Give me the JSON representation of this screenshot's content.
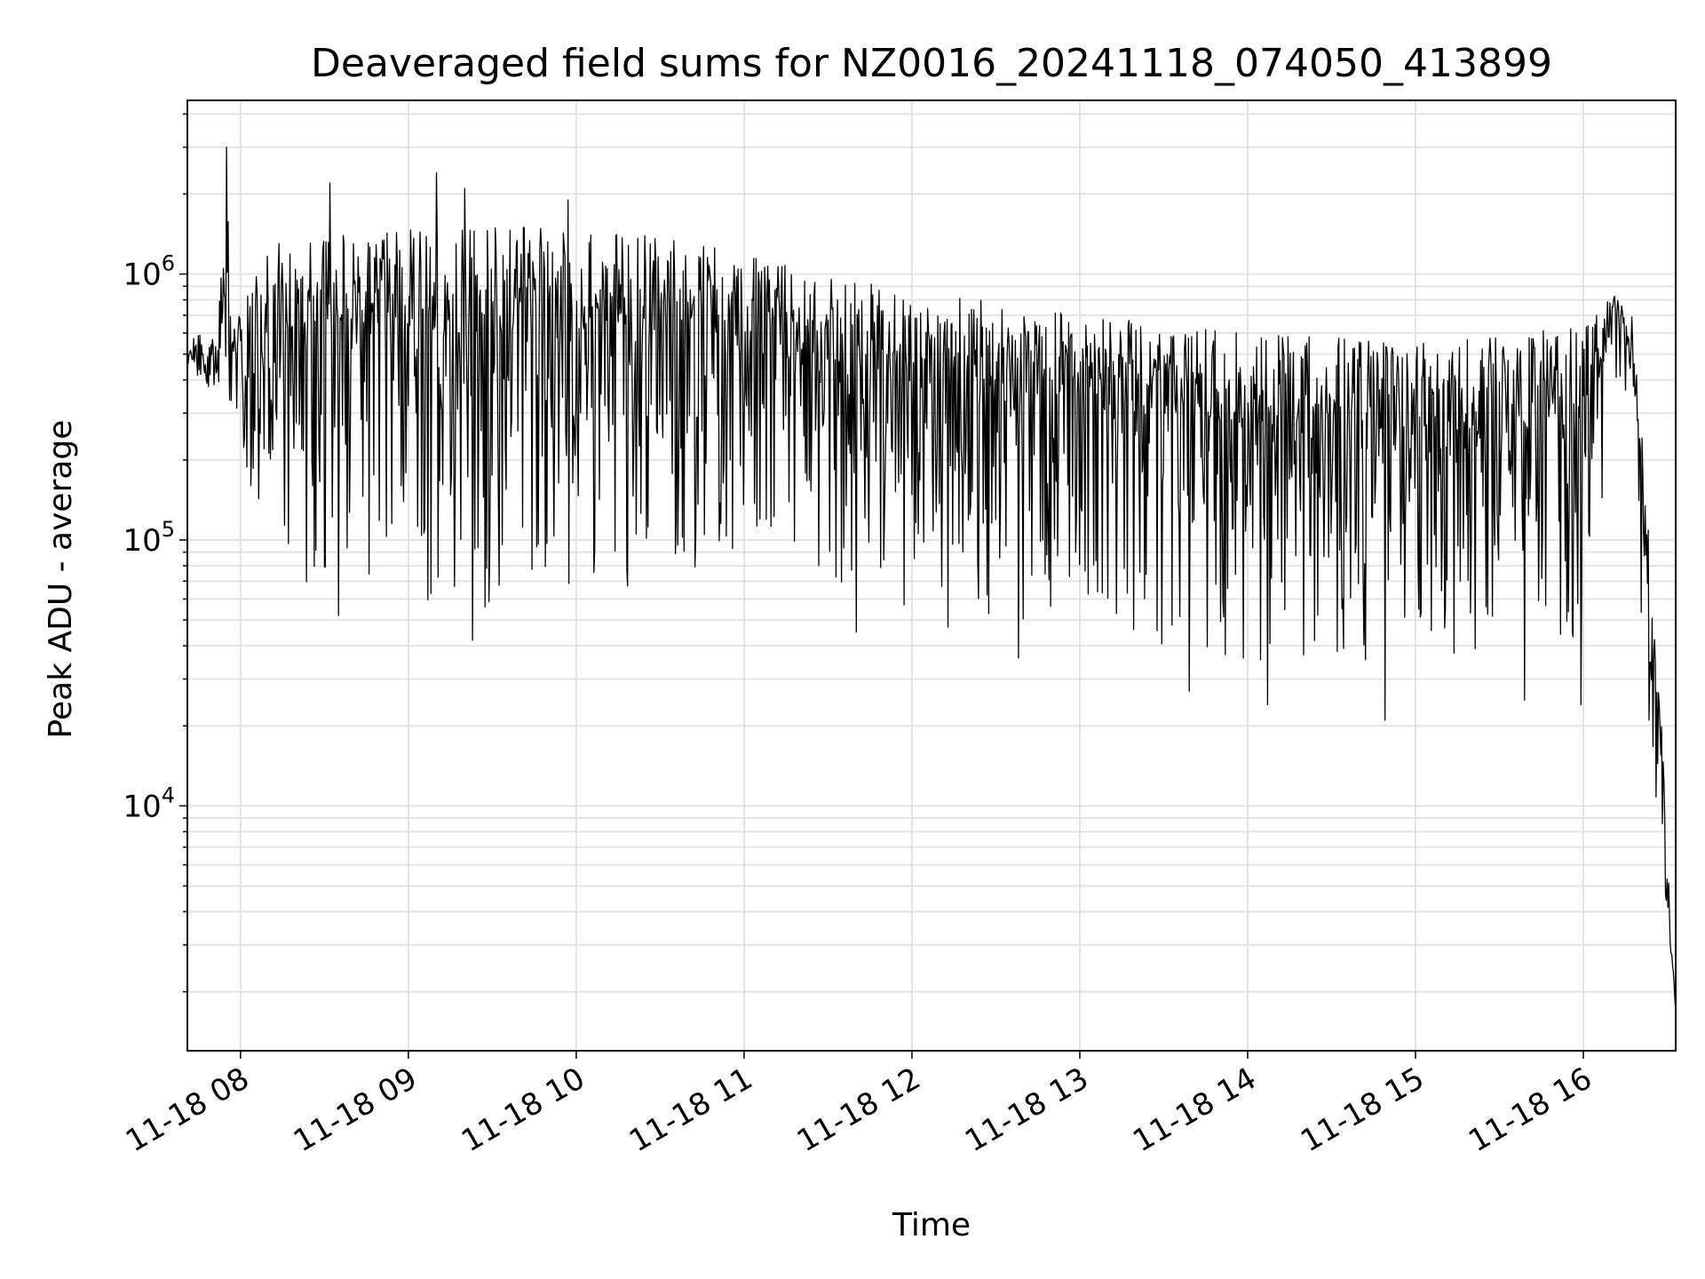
{
  "chart_data": {
    "type": "line",
    "title": "Deaveraged field sums for NZ0016_20241118_074050_413899",
    "xlabel": "Time",
    "ylabel": "Peak ADU - average",
    "yscale": "log",
    "xlim": [
      "2024-11-18 07:41",
      "2024-11-18 16:33"
    ],
    "ylim": [
      1200,
      4500000
    ],
    "x_ticks": [
      {
        "value": "2024-11-18 08:00",
        "label": "11-18 08"
      },
      {
        "value": "2024-11-18 09:00",
        "label": "11-18 09"
      },
      {
        "value": "2024-11-18 10:00",
        "label": "11-18 10"
      },
      {
        "value": "2024-11-18 11:00",
        "label": "11-18 11"
      },
      {
        "value": "2024-11-18 12:00",
        "label": "11-18 12"
      },
      {
        "value": "2024-11-18 13:00",
        "label": "11-18 13"
      },
      {
        "value": "2024-11-18 14:00",
        "label": "11-18 14"
      },
      {
        "value": "2024-11-18 15:00",
        "label": "11-18 15"
      },
      {
        "value": "2024-11-18 16:00",
        "label": "11-18 16"
      }
    ],
    "y_ticks": [
      {
        "value": 10000,
        "base": "10",
        "exp": "4"
      },
      {
        "value": 100000,
        "base": "10",
        "exp": "5"
      },
      {
        "value": 1000000,
        "base": "10",
        "exp": "6"
      }
    ],
    "grid": true,
    "line_color": "#000000",
    "series": [
      {
        "name": "",
        "upper_envelope": [
          {
            "x": "2024-11-18 07:41",
            "y": 580000
          },
          {
            "x": "2024-11-18 07:52",
            "y": 640000
          },
          {
            "x": "2024-11-18 07:53",
            "y": 1000000
          },
          {
            "x": "2024-11-18 07:55",
            "y": 3000000
          },
          {
            "x": "2024-11-18 07:58",
            "y": 700000
          },
          {
            "x": "2024-11-18 08:10",
            "y": 1300000
          },
          {
            "x": "2024-11-18 08:30",
            "y": 1400000
          },
          {
            "x": "2024-11-18 09:00",
            "y": 1500000
          },
          {
            "x": "2024-11-18 09:30",
            "y": 1500000
          },
          {
            "x": "2024-11-18 10:00",
            "y": 1500000
          },
          {
            "x": "2024-11-18 10:30",
            "y": 1400000
          },
          {
            "x": "2024-11-18 11:00",
            "y": 1200000
          },
          {
            "x": "2024-11-18 11:30",
            "y": 1000000
          },
          {
            "x": "2024-11-18 12:00",
            "y": 850000
          },
          {
            "x": "2024-11-18 12:30",
            "y": 800000
          },
          {
            "x": "2024-11-18 13:00",
            "y": 700000
          },
          {
            "x": "2024-11-18 13:30",
            "y": 650000
          },
          {
            "x": "2024-11-18 14:00",
            "y": 600000
          },
          {
            "x": "2024-11-18 14:30",
            "y": 580000
          },
          {
            "x": "2024-11-18 15:00",
            "y": 560000
          },
          {
            "x": "2024-11-18 15:30",
            "y": 580000
          },
          {
            "x": "2024-11-18 16:00",
            "y": 650000
          },
          {
            "x": "2024-11-18 16:12",
            "y": 850000
          },
          {
            "x": "2024-11-18 16:18",
            "y": 700000
          },
          {
            "x": "2024-11-18 16:21",
            "y": 300000
          },
          {
            "x": "2024-11-18 16:24",
            "y": 80000
          },
          {
            "x": "2024-11-18 16:28",
            "y": 20000
          },
          {
            "x": "2024-11-18 16:31",
            "y": 4000
          },
          {
            "x": "2024-11-18 16:33",
            "y": 1700
          }
        ],
        "lower_envelope": [
          {
            "x": "2024-11-18 07:41",
            "y": 430000
          },
          {
            "x": "2024-11-18 07:58",
            "y": 300000
          },
          {
            "x": "2024-11-18 08:10",
            "y": 75000
          },
          {
            "x": "2024-11-18 08:30",
            "y": 65000
          },
          {
            "x": "2024-11-18 09:00",
            "y": 60000
          },
          {
            "x": "2024-11-18 09:30",
            "y": 55000
          },
          {
            "x": "2024-11-18 10:00",
            "y": 60000
          },
          {
            "x": "2024-11-18 10:30",
            "y": 70000
          },
          {
            "x": "2024-11-18 11:00",
            "y": 80000
          },
          {
            "x": "2024-11-18 11:30",
            "y": 70000
          },
          {
            "x": "2024-11-18 12:00",
            "y": 55000
          },
          {
            "x": "2024-11-18 12:30",
            "y": 50000
          },
          {
            "x": "2024-11-18 13:00",
            "y": 45000
          },
          {
            "x": "2024-11-18 13:30",
            "y": 40000
          },
          {
            "x": "2024-11-18 14:00",
            "y": 35000
          },
          {
            "x": "2024-11-18 14:30",
            "y": 32000
          },
          {
            "x": "2024-11-18 15:00",
            "y": 35000
          },
          {
            "x": "2024-11-18 15:30",
            "y": 35000
          },
          {
            "x": "2024-11-18 16:00",
            "y": 40000
          },
          {
            "x": "2024-11-18 16:12",
            "y": 400000
          },
          {
            "x": "2024-11-18 16:33",
            "y": 1700
          }
        ],
        "spikes_high": [
          {
            "x": "2024-11-18 07:55",
            "y": 3000000
          },
          {
            "x": "2024-11-18 08:32",
            "y": 2200000
          },
          {
            "x": "2024-11-18 09:10",
            "y": 2400000
          },
          {
            "x": "2024-11-18 09:20",
            "y": 2100000
          },
          {
            "x": "2024-11-18 09:57",
            "y": 1900000
          }
        ],
        "spikes_low": [
          {
            "x": "2024-11-18 08:35",
            "y": 52000
          },
          {
            "x": "2024-11-18 09:23",
            "y": 42000
          },
          {
            "x": "2024-11-18 11:40",
            "y": 45000
          },
          {
            "x": "2024-11-18 12:13",
            "y": 47000
          },
          {
            "x": "2024-11-18 12:38",
            "y": 36000
          },
          {
            "x": "2024-11-18 13:39",
            "y": 27000
          },
          {
            "x": "2024-11-18 14:07",
            "y": 24000
          },
          {
            "x": "2024-11-18 14:49",
            "y": 21000
          },
          {
            "x": "2024-11-18 15:39",
            "y": 25000
          },
          {
            "x": "2024-11-18 15:59",
            "y": 24000
          }
        ]
      }
    ]
  }
}
